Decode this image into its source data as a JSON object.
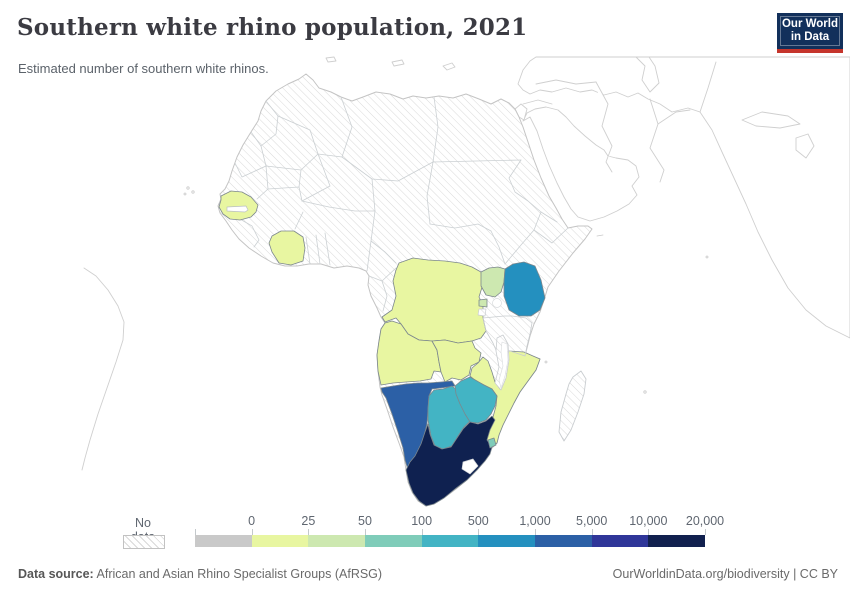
{
  "header": {
    "title": "Southern white rhino population, 2021",
    "subtitle": "Estimated number of southern white rhinos.",
    "logo": {
      "line1": "Our World",
      "line2": "in Data"
    }
  },
  "legend": {
    "no_data_label": "No data",
    "segments": [
      {
        "color": "#c9c9c9",
        "tick": "0"
      },
      {
        "color": "#e8f6a1",
        "tick": "25"
      },
      {
        "color": "#cde8b0",
        "tick": "50"
      },
      {
        "color": "#7fccb9",
        "tick": "100"
      },
      {
        "color": "#43b4c4",
        "tick": "500"
      },
      {
        "color": "#2490bf",
        "tick": "1,000"
      },
      {
        "color": "#2c60a6",
        "tick": "5,000"
      },
      {
        "color": "#2f3699",
        "tick": "10,000"
      },
      {
        "color": "#11204e",
        "tick": "20,000"
      }
    ]
  },
  "footer": {
    "source_label": "Data source:",
    "source_text": " African and Asian Rhino Specialist Groups (AfRSG)",
    "right_text": "OurWorldinData.org/biodiversity | CC BY"
  },
  "map": {
    "countries": [
      {
        "id": "senegal",
        "name": "Senegal",
        "color": "#e8f6a1"
      },
      {
        "id": "cote-divoire",
        "name": "Cote d'Ivoire",
        "color": "#e8f6a1"
      },
      {
        "id": "drc",
        "name": "Democratic Republic of Congo",
        "color": "#e8f6a1"
      },
      {
        "id": "angola",
        "name": "Angola",
        "color": "#e8f6a1"
      },
      {
        "id": "zambia",
        "name": "Zambia",
        "color": "#e8f6a1"
      },
      {
        "id": "mozambique",
        "name": "Mozambique",
        "color": "#e8f6a1"
      },
      {
        "id": "uganda",
        "name": "Uganda",
        "color": "#cde8b0"
      },
      {
        "id": "rwanda",
        "name": "Rwanda",
        "color": "#cde8b0"
      },
      {
        "id": "eswatini",
        "name": "Eswatini",
        "color": "#7fccb9"
      },
      {
        "id": "botswana",
        "name": "Botswana",
        "color": "#43b4c4"
      },
      {
        "id": "zimbabwe",
        "name": "Zimbabwe",
        "color": "#43b4c4"
      },
      {
        "id": "kenya",
        "name": "Kenya",
        "color": "#2490bf"
      },
      {
        "id": "namibia",
        "name": "Namibia",
        "color": "#2c60a6"
      },
      {
        "id": "south-africa",
        "name": "South Africa",
        "color": "#0f2150"
      }
    ]
  },
  "chart_data": {
    "type": "choropleth",
    "title": "Southern white rhino population, 2021",
    "subtitle": "Estimated number of southern white rhinos.",
    "legend_thresholds": [
      0,
      25,
      50,
      100,
      500,
      1000,
      5000,
      10000,
      20000
    ],
    "palette": "YlGnBu",
    "no_data_style": "hatched",
    "series": [
      {
        "entity": "South Africa",
        "value_bin": "10,000-20,000",
        "color": "#0f2150"
      },
      {
        "entity": "Namibia",
        "value_bin": "1,000-5,000",
        "color": "#2c60a6"
      },
      {
        "entity": "Kenya",
        "value_bin": "500-1,000",
        "color": "#2490bf"
      },
      {
        "entity": "Botswana",
        "value_bin": "100-500",
        "color": "#43b4c4"
      },
      {
        "entity": "Zimbabwe",
        "value_bin": "100-500",
        "color": "#43b4c4"
      },
      {
        "entity": "Eswatini",
        "value_bin": "50-100",
        "color": "#7fccb9"
      },
      {
        "entity": "Uganda",
        "value_bin": "25-50",
        "color": "#cde8b0"
      },
      {
        "entity": "Rwanda",
        "value_bin": "25-50",
        "color": "#cde8b0"
      },
      {
        "entity": "Senegal",
        "value_bin": "0-25",
        "color": "#e8f6a1"
      },
      {
        "entity": "Cote d'Ivoire",
        "value_bin": "0-25",
        "color": "#e8f6a1"
      },
      {
        "entity": "Democratic Republic of Congo",
        "value_bin": "0-25",
        "color": "#e8f6a1"
      },
      {
        "entity": "Angola",
        "value_bin": "0-25",
        "color": "#e8f6a1"
      },
      {
        "entity": "Zambia",
        "value_bin": "0-25",
        "color": "#e8f6a1"
      },
      {
        "entity": "Mozambique",
        "value_bin": "0-25",
        "color": "#e8f6a1"
      }
    ]
  }
}
